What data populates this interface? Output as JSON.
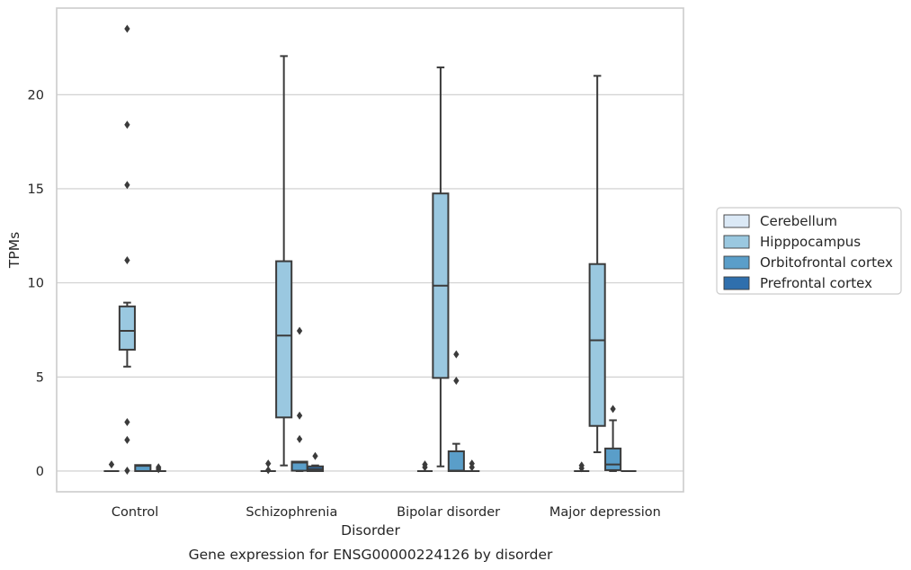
{
  "chart_data": {
    "type": "box",
    "caption": "Gene expression for ENSG00000224126 by disorder",
    "xlabel": "Disorder",
    "ylabel": "TPMs",
    "ylim": [
      -1.1,
      24.6
    ],
    "yticks": [
      0,
      5,
      10,
      15,
      20
    ],
    "grid": "horizontal",
    "legend_position": "right",
    "categories": [
      "Control",
      "Schizophrenia",
      "Bipolar disorder",
      "Major depression"
    ],
    "series": [
      {
        "name": "Cerebellum",
        "color": "#dbe9f6",
        "boxes": [
          {
            "q1": 0,
            "median": 0,
            "q3": 0,
            "whislo": 0,
            "whishi": 0,
            "fliers": [
              0.35
            ]
          },
          {
            "q1": 0,
            "median": 0,
            "q3": 0,
            "whislo": 0,
            "whishi": 0,
            "fliers": [
              0.4,
              0.05
            ]
          },
          {
            "q1": 0,
            "median": 0,
            "q3": 0,
            "whislo": 0,
            "whishi": 0,
            "fliers": [
              0.35,
              0.2
            ]
          },
          {
            "q1": 0,
            "median": 0,
            "q3": 0,
            "whislo": 0,
            "whishi": 0,
            "fliers": [
              0.3,
              0.15
            ]
          }
        ]
      },
      {
        "name": "Hipppocampus",
        "color": "#9ac8e0",
        "boxes": [
          {
            "q1": 6.45,
            "median": 7.45,
            "q3": 8.75,
            "whislo": 5.55,
            "whishi": 8.95,
            "fliers": [
              23.5,
              18.4,
              15.2,
              11.2,
              2.6,
              1.65,
              0.02
            ]
          },
          {
            "q1": 2.85,
            "median": 7.2,
            "q3": 11.15,
            "whislo": 0.3,
            "whishi": 22.05,
            "fliers": []
          },
          {
            "q1": 4.95,
            "median": 9.85,
            "q3": 14.75,
            "whislo": 0.25,
            "whishi": 21.45,
            "fliers": []
          },
          {
            "q1": 2.4,
            "median": 6.95,
            "q3": 11.0,
            "whislo": 1.0,
            "whishi": 21.0,
            "fliers": []
          }
        ]
      },
      {
        "name": "Orbitofrontal cortex",
        "color": "#5a9ec9",
        "boxes": [
          {
            "q1": 0,
            "median": 0.28,
            "q3": 0.32,
            "whislo": 0,
            "whishi": 0.32,
            "fliers": []
          },
          {
            "q1": 0.02,
            "median": 0.45,
            "q3": 0.5,
            "whislo": 0,
            "whishi": 0.5,
            "fliers": [
              7.45,
              2.95,
              1.7
            ]
          },
          {
            "q1": 0,
            "median": 0.02,
            "q3": 1.05,
            "whislo": 0,
            "whishi": 1.45,
            "fliers": [
              6.2,
              4.8
            ]
          },
          {
            "q1": 0.05,
            "median": 0.35,
            "q3": 1.2,
            "whislo": 0,
            "whishi": 2.7,
            "fliers": [
              3.3
            ]
          }
        ]
      },
      {
        "name": "Prefrontal cortex",
        "color": "#2f6fad",
        "boxes": [
          {
            "q1": 0,
            "median": 0,
            "q3": 0,
            "whislo": 0,
            "whishi": 0,
            "fliers": [
              0.2,
              0.1
            ]
          },
          {
            "q1": 0,
            "median": 0.1,
            "q3": 0.25,
            "whislo": 0,
            "whishi": 0.3,
            "fliers": [
              0.8
            ]
          },
          {
            "q1": 0,
            "median": 0,
            "q3": 0,
            "whislo": 0,
            "whishi": 0,
            "fliers": [
              0.4,
              0.2
            ]
          },
          {
            "q1": 0,
            "median": 0,
            "q3": 0,
            "whislo": 0,
            "whishi": 0,
            "fliers": []
          }
        ]
      }
    ]
  }
}
